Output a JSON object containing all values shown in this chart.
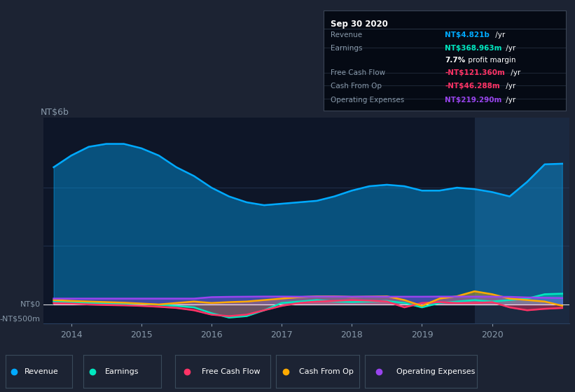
{
  "bg_color": "#1c2333",
  "plot_bg_color": "#0e1628",
  "highlight_bg_color": "#1e2d45",
  "grid_color": "#2a3f5f",
  "text_color": "#8899aa",
  "title_color": "#ffffff",
  "ylabel_text": "NT$6b",
  "y0_text": "NT$0",
  "yneg_text": "-NT$500m",
  "x_ticks": [
    2014,
    2015,
    2016,
    2017,
    2018,
    2019,
    2020
  ],
  "ylim": [
    -650,
    6400
  ],
  "xlim_start": 2013.6,
  "xlim_end": 2021.1,
  "highlight_start": 2019.75,
  "highlight_end": 2021.1,
  "revenue_color": "#00aaff",
  "earnings_color": "#00e8c0",
  "fcf_color": "#ff3366",
  "cashfromop_color": "#ffaa00",
  "opex_color": "#9944ee",
  "fill_alpha": 0.4,
  "line_width": 1.8,
  "tooltip_bg": "#050a14",
  "tooltip_title": "Sep 30 2020",
  "tooltip_rows": [
    {
      "label": "Revenue",
      "bold_val": "NT$4.821b",
      "rest_val": " /yr",
      "value_color": "#00aaff"
    },
    {
      "label": "Earnings",
      "bold_val": "NT$368.963m",
      "rest_val": " /yr",
      "value_color": "#00e8c0"
    },
    {
      "label": "",
      "bold_val": "7.7%",
      "rest_val": " profit margin",
      "value_color": "#ffffff"
    },
    {
      "label": "Free Cash Flow",
      "bold_val": "-NT$121.360m",
      "rest_val": " /yr",
      "value_color": "#ff3366"
    },
    {
      "label": "Cash From Op",
      "bold_val": "-NT$46.288m",
      "rest_val": " /yr",
      "value_color": "#ff3366"
    },
    {
      "label": "Operating Expenses",
      "bold_val": "NT$219.290m",
      "rest_val": " /yr",
      "value_color": "#9944ee"
    }
  ],
  "legend_items": [
    {
      "label": "Revenue",
      "color": "#00aaff"
    },
    {
      "label": "Earnings",
      "color": "#00e8c0"
    },
    {
      "label": "Free Cash Flow",
      "color": "#ff3366"
    },
    {
      "label": "Cash From Op",
      "color": "#ffaa00"
    },
    {
      "label": "Operating Expenses",
      "color": "#9944ee"
    }
  ],
  "revenue_x": [
    2013.75,
    2014.0,
    2014.25,
    2014.5,
    2014.75,
    2015.0,
    2015.25,
    2015.5,
    2015.75,
    2016.0,
    2016.25,
    2016.5,
    2016.75,
    2017.0,
    2017.25,
    2017.5,
    2017.75,
    2018.0,
    2018.25,
    2018.5,
    2018.75,
    2019.0,
    2019.25,
    2019.5,
    2019.75,
    2020.0,
    2020.25,
    2020.5,
    2020.75,
    2021.0
  ],
  "revenue_y": [
    4700,
    5100,
    5400,
    5500,
    5500,
    5350,
    5100,
    4700,
    4400,
    4000,
    3700,
    3500,
    3400,
    3450,
    3500,
    3550,
    3700,
    3900,
    4050,
    4100,
    4050,
    3900,
    3900,
    4000,
    3950,
    3850,
    3700,
    4200,
    4800,
    4821
  ],
  "earnings_x": [
    2013.75,
    2014.0,
    2014.25,
    2014.5,
    2014.75,
    2015.0,
    2015.25,
    2015.5,
    2015.75,
    2016.0,
    2016.25,
    2016.5,
    2016.75,
    2017.0,
    2017.25,
    2017.5,
    2017.75,
    2018.0,
    2018.25,
    2018.5,
    2018.75,
    2019.0,
    2019.25,
    2019.5,
    2019.75,
    2020.0,
    2020.25,
    2020.5,
    2020.75,
    2021.0
  ],
  "earnings_y": [
    100,
    80,
    60,
    50,
    30,
    20,
    -10,
    -50,
    -100,
    -300,
    -450,
    -400,
    -200,
    50,
    100,
    150,
    100,
    80,
    100,
    120,
    50,
    -100,
    50,
    100,
    150,
    100,
    150,
    200,
    350,
    369
  ],
  "fcf_x": [
    2013.75,
    2014.0,
    2014.25,
    2014.5,
    2014.75,
    2015.0,
    2015.25,
    2015.5,
    2015.75,
    2016.0,
    2016.25,
    2016.5,
    2016.75,
    2017.0,
    2017.25,
    2017.5,
    2017.75,
    2018.0,
    2018.25,
    2018.5,
    2018.75,
    2019.0,
    2019.25,
    2019.5,
    2019.75,
    2020.0,
    2020.25,
    2020.5,
    2020.75,
    2021.0
  ],
  "fcf_y": [
    50,
    30,
    0,
    -20,
    -30,
    -50,
    -80,
    -120,
    -200,
    -350,
    -400,
    -350,
    -200,
    -50,
    50,
    100,
    120,
    150,
    130,
    100,
    -100,
    50,
    80,
    50,
    50,
    80,
    -100,
    -200,
    -150,
    -121
  ],
  "cashfromop_x": [
    2013.75,
    2014.0,
    2014.25,
    2014.5,
    2014.75,
    2015.0,
    2015.25,
    2015.5,
    2015.75,
    2016.0,
    2016.25,
    2016.5,
    2016.75,
    2017.0,
    2017.25,
    2017.5,
    2017.75,
    2018.0,
    2018.25,
    2018.5,
    2018.75,
    2019.0,
    2019.25,
    2019.5,
    2019.75,
    2020.0,
    2020.25,
    2020.5,
    2020.75,
    2021.0
  ],
  "cashfromop_y": [
    150,
    120,
    100,
    80,
    60,
    30,
    0,
    50,
    100,
    50,
    80,
    100,
    150,
    200,
    250,
    280,
    280,
    260,
    270,
    280,
    150,
    -50,
    200,
    280,
    450,
    350,
    200,
    150,
    100,
    -46
  ],
  "opex_x": [
    2013.75,
    2014.0,
    2014.25,
    2014.5,
    2014.75,
    2015.0,
    2015.25,
    2015.5,
    2015.75,
    2016.0,
    2016.25,
    2016.5,
    2016.75,
    2017.0,
    2017.25,
    2017.5,
    2017.75,
    2018.0,
    2018.25,
    2018.5,
    2018.75,
    2019.0,
    2019.25,
    2019.5,
    2019.75,
    2020.0,
    2020.25,
    2020.5,
    2020.75,
    2021.0
  ],
  "opex_y": [
    200,
    200,
    200,
    200,
    200,
    200,
    200,
    200,
    200,
    250,
    260,
    265,
    270,
    270,
    265,
    270,
    270,
    265,
    268,
    265,
    265,
    265,
    268,
    268,
    268,
    265,
    260,
    240,
    230,
    219
  ]
}
